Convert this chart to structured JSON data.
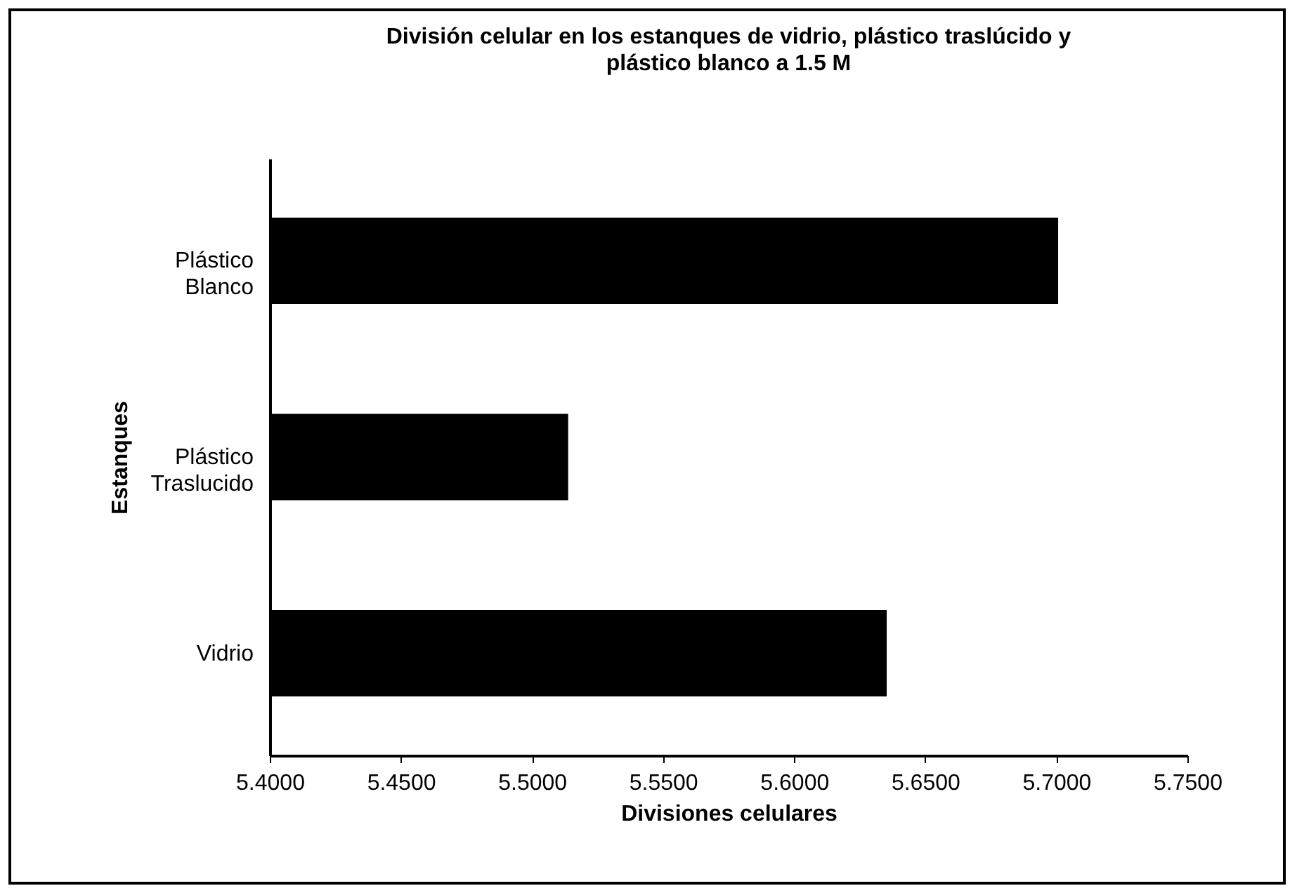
{
  "chart_data": {
    "type": "bar",
    "orientation": "horizontal",
    "title": "División celular en los estanques de vidrio, plástico traslúcido y plástico blanco a 1.5 M",
    "xlabel": "Divisiones celulares",
    "ylabel": "Estanques",
    "categories": [
      "Plástico Blanco",
      "Plástico Traslucido",
      "Vidrio"
    ],
    "values": [
      5.7007,
      5.5138,
      5.6353
    ],
    "color": "#000000",
    "xlim": [
      5.4,
      5.75
    ],
    "xticks": [
      {
        "value": 5.4,
        "label": "5.4000"
      },
      {
        "value": 5.45,
        "label": "5.4500"
      },
      {
        "value": 5.5,
        "label": "5.5000"
      },
      {
        "value": 5.55,
        "label": "5.5500"
      },
      {
        "value": 5.6,
        "label": "5.6000"
      },
      {
        "value": 5.65,
        "label": "5.6500"
      },
      {
        "value": 5.7,
        "label": "5.7000"
      },
      {
        "value": 5.75,
        "label": "5.7500"
      }
    ],
    "grid": false
  }
}
